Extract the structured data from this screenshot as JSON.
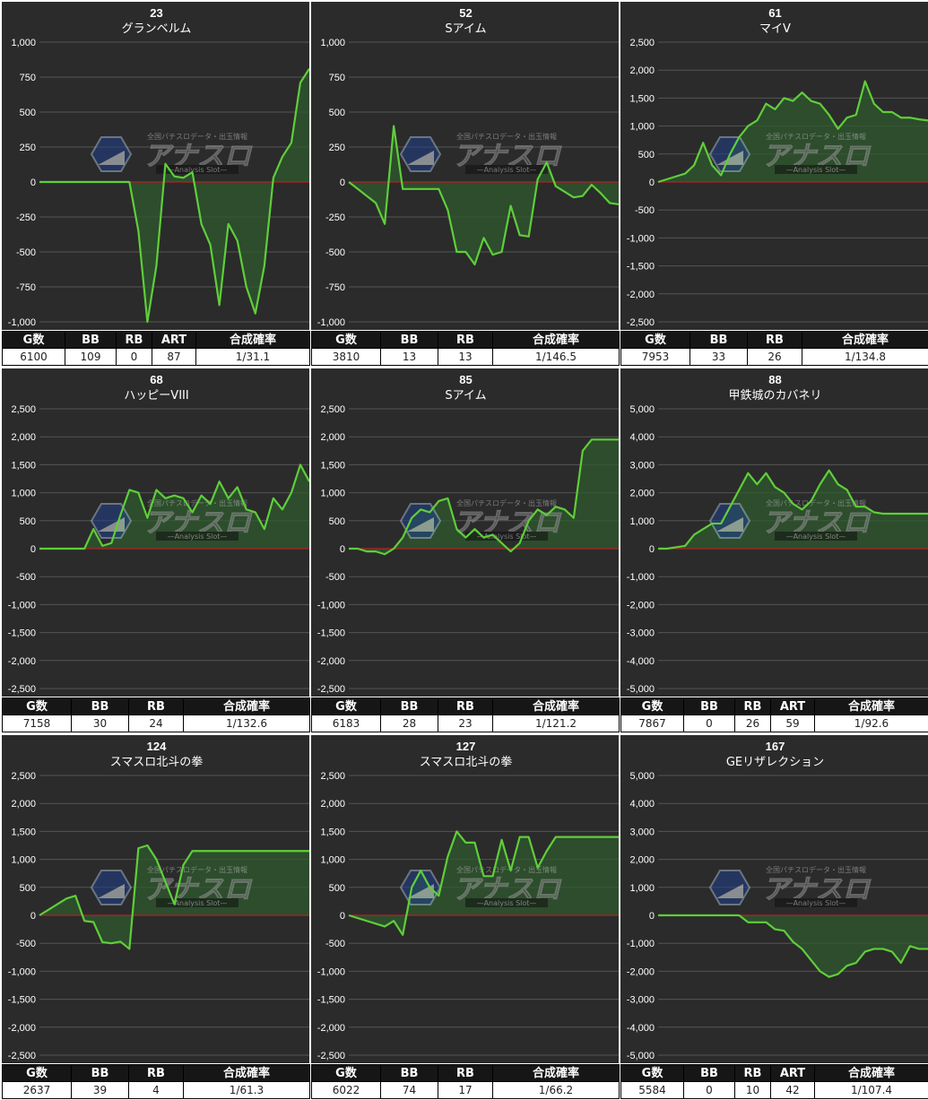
{
  "watermark": {
    "logo_text": "アナスロ",
    "sub_text": "—Analysis Slot—",
    "top_text": "全国パチスロデータ・出玉情報"
  },
  "colors": {
    "panel_bg": "#2b2b2b",
    "line": "#5fce3a",
    "fill": "#2f5a2f",
    "zero_line": "#b22222",
    "grid": "#555555",
    "text": "#ffffff"
  },
  "chart_data": [
    {
      "type": "area",
      "number": "23",
      "name": "グランベルム",
      "ylim": [
        -1000,
        1000
      ],
      "yticks": [
        1000,
        750,
        500,
        250,
        0,
        -250,
        -500,
        -750,
        -1000
      ],
      "x": [
        0,
        1,
        2,
        3,
        4,
        5,
        6,
        7,
        8,
        9,
        10,
        11,
        12,
        13,
        14,
        15,
        16,
        17,
        18,
        19,
        20,
        21,
        22,
        23,
        24,
        25,
        26,
        27,
        28,
        29,
        30
      ],
      "values": [
        0,
        0,
        0,
        0,
        0,
        0,
        0,
        0,
        0,
        0,
        0,
        -350,
        -1000,
        -600,
        130,
        40,
        30,
        70,
        -300,
        -450,
        -880,
        -300,
        -420,
        -750,
        -940,
        -600,
        30,
        180,
        280,
        710,
        810
      ],
      "headers": [
        "G数",
        "BB",
        "RB",
        "ART",
        "合成確率"
      ],
      "values_row": [
        "6100",
        "109",
        "0",
        "87",
        "1/31.1"
      ]
    },
    {
      "type": "area",
      "number": "52",
      "name": "Sアイム",
      "ylim": [
        -1000,
        1000
      ],
      "yticks": [
        1000,
        750,
        500,
        250,
        0,
        -250,
        -500,
        -750,
        -1000
      ],
      "x": [
        0,
        1,
        2,
        3,
        4,
        5,
        6,
        7,
        8,
        9,
        10,
        11,
        12,
        13,
        14,
        15,
        16,
        17,
        18,
        19,
        20,
        21,
        22,
        23,
        24,
        25,
        26,
        27,
        28,
        29,
        30
      ],
      "values": [
        0,
        -50,
        -100,
        -150,
        -300,
        400,
        -50,
        -50,
        -50,
        -50,
        -50,
        -200,
        -500,
        -500,
        -590,
        -400,
        -520,
        -500,
        -170,
        -380,
        -390,
        20,
        140,
        -30,
        -70,
        -110,
        -100,
        -20,
        -80,
        -150,
        -160
      ],
      "headers": [
        "G数",
        "BB",
        "RB",
        "合成確率"
      ],
      "values_row": [
        "3810",
        "13",
        "13",
        "1/146.5"
      ]
    },
    {
      "type": "area",
      "number": "61",
      "name": "マイV",
      "ylim": [
        -2500,
        2500
      ],
      "yticks": [
        2500,
        2000,
        1500,
        1000,
        500,
        0,
        -500,
        -1000,
        -1500,
        -2000,
        -2500
      ],
      "x": [
        0,
        1,
        2,
        3,
        4,
        5,
        6,
        7,
        8,
        9,
        10,
        11,
        12,
        13,
        14,
        15,
        16,
        17,
        18,
        19,
        20,
        21,
        22,
        23,
        24,
        25,
        26,
        27,
        28,
        29,
        30
      ],
      "values": [
        0,
        50,
        100,
        150,
        300,
        700,
        300,
        120,
        500,
        800,
        1000,
        1100,
        1400,
        1300,
        1500,
        1450,
        1600,
        1450,
        1400,
        1200,
        950,
        1150,
        1200,
        1800,
        1400,
        1250,
        1250,
        1150,
        1150,
        1120,
        1100
      ],
      "headers": [
        "G数",
        "BB",
        "RB",
        "合成確率"
      ],
      "values_row": [
        "7953",
        "33",
        "26",
        "1/134.8"
      ]
    },
    {
      "type": "area",
      "number": "68",
      "name": "ハッピーVIII",
      "ylim": [
        -2500,
        2500
      ],
      "yticks": [
        2500,
        2000,
        1500,
        1000,
        500,
        0,
        -500,
        -1000,
        -1500,
        -2000,
        -2500
      ],
      "x": [
        0,
        1,
        2,
        3,
        4,
        5,
        6,
        7,
        8,
        9,
        10,
        11,
        12,
        13,
        14,
        15,
        16,
        17,
        18,
        19,
        20,
        21,
        22,
        23,
        24,
        25,
        26,
        27,
        28,
        29,
        30
      ],
      "values": [
        0,
        0,
        0,
        0,
        0,
        0,
        350,
        50,
        100,
        600,
        1050,
        1000,
        550,
        1050,
        900,
        950,
        900,
        650,
        950,
        800,
        1200,
        900,
        1100,
        700,
        650,
        350,
        900,
        700,
        1000,
        1500,
        1200
      ],
      "headers": [
        "G数",
        "BB",
        "RB",
        "合成確率"
      ],
      "values_row": [
        "7158",
        "30",
        "24",
        "1/132.6"
      ]
    },
    {
      "type": "area",
      "number": "85",
      "name": "Sアイム",
      "ylim": [
        -2500,
        2500
      ],
      "yticks": [
        2500,
        2000,
        1500,
        1000,
        500,
        0,
        -500,
        -1000,
        -1500,
        -2000,
        -2500
      ],
      "x": [
        0,
        1,
        2,
        3,
        4,
        5,
        6,
        7,
        8,
        9,
        10,
        11,
        12,
        13,
        14,
        15,
        16,
        17,
        18,
        19,
        20,
        21,
        22,
        23,
        24,
        25,
        26,
        27,
        28,
        29,
        30
      ],
      "values": [
        0,
        0,
        -50,
        -50,
        -100,
        0,
        200,
        550,
        700,
        650,
        850,
        900,
        350,
        200,
        350,
        200,
        250,
        100,
        -50,
        100,
        500,
        700,
        600,
        750,
        700,
        550,
        1750,
        1950,
        1950,
        1950,
        1950
      ],
      "headers": [
        "G数",
        "BB",
        "RB",
        "合成確率"
      ],
      "values_row": [
        "6183",
        "28",
        "23",
        "1/121.2"
      ]
    },
    {
      "type": "area",
      "number": "88",
      "name": "甲鉄城のカバネリ",
      "ylim": [
        -5000,
        5000
      ],
      "yticks": [
        5000,
        4000,
        3000,
        2000,
        1000,
        0,
        -1000,
        -2000,
        -3000,
        -4000,
        -5000
      ],
      "x": [
        0,
        1,
        2,
        3,
        4,
        5,
        6,
        7,
        8,
        9,
        10,
        11,
        12,
        13,
        14,
        15,
        16,
        17,
        18,
        19,
        20,
        21,
        22,
        23,
        24,
        25,
        26,
        27,
        28,
        29,
        30
      ],
      "values": [
        0,
        0,
        50,
        100,
        500,
        700,
        900,
        900,
        1500,
        2100,
        2700,
        2300,
        2700,
        2200,
        2000,
        1600,
        1400,
        1700,
        2300,
        2800,
        2300,
        2100,
        1500,
        1500,
        1300,
        1250,
        1250,
        1250,
        1250,
        1250,
        1250
      ],
      "headers": [
        "G数",
        "BB",
        "RB",
        "ART",
        "合成確率"
      ],
      "values_row": [
        "7867",
        "0",
        "26",
        "59",
        "1/92.6"
      ]
    },
    {
      "type": "area",
      "number": "124",
      "name": "スマスロ北斗の拳",
      "ylim": [
        -2500,
        2500
      ],
      "yticks": [
        2500,
        2000,
        1500,
        1000,
        500,
        0,
        -500,
        -1000,
        -1500,
        -2000,
        -2500
      ],
      "x": [
        0,
        1,
        2,
        3,
        4,
        5,
        6,
        7,
        8,
        9,
        10,
        11,
        12,
        13,
        14,
        15,
        16,
        17,
        18,
        19,
        20,
        21,
        22,
        23,
        24,
        25,
        26,
        27,
        28,
        29,
        30
      ],
      "values": [
        0,
        100,
        200,
        300,
        350,
        -100,
        -120,
        -480,
        -500,
        -470,
        -600,
        1200,
        1250,
        1000,
        600,
        200,
        900,
        1150,
        1150,
        1150,
        1150,
        1150,
        1150,
        1150,
        1150,
        1150,
        1150,
        1150,
        1150,
        1150,
        1150
      ],
      "headers": [
        "G数",
        "BB",
        "RB",
        "合成確率"
      ],
      "values_row": [
        "2637",
        "39",
        "4",
        "1/61.3"
      ]
    },
    {
      "type": "area",
      "number": "127",
      "name": "スマスロ北斗の拳",
      "ylim": [
        -2500,
        2500
      ],
      "yticks": [
        2500,
        2000,
        1500,
        1000,
        500,
        0,
        -500,
        -1000,
        -1500,
        -2000,
        -2500
      ],
      "x": [
        0,
        1,
        2,
        3,
        4,
        5,
        6,
        7,
        8,
        9,
        10,
        11,
        12,
        13,
        14,
        15,
        16,
        17,
        18,
        19,
        20,
        21,
        22,
        23,
        24,
        25,
        26,
        27,
        28,
        29,
        30
      ],
      "values": [
        0,
        -50,
        -100,
        -150,
        -200,
        -100,
        -350,
        500,
        800,
        500,
        350,
        1050,
        1500,
        1300,
        1300,
        700,
        700,
        1350,
        800,
        1400,
        1400,
        850,
        1150,
        1400,
        1400,
        1400,
        1400,
        1400,
        1400,
        1400,
        1400
      ],
      "headers": [
        "G数",
        "BB",
        "RB",
        "合成確率"
      ],
      "values_row": [
        "6022",
        "74",
        "17",
        "1/66.2"
      ]
    },
    {
      "type": "area",
      "number": "167",
      "name": "GEリザレクション",
      "ylim": [
        -5000,
        5000
      ],
      "yticks": [
        5000,
        4000,
        3000,
        2000,
        1000,
        0,
        -1000,
        -2000,
        -3000,
        -4000,
        -5000
      ],
      "x": [
        0,
        1,
        2,
        3,
        4,
        5,
        6,
        7,
        8,
        9,
        10,
        11,
        12,
        13,
        14,
        15,
        16,
        17,
        18,
        19,
        20,
        21,
        22,
        23,
        24,
        25,
        26,
        27,
        28,
        29,
        30
      ],
      "values": [
        0,
        0,
        0,
        0,
        0,
        0,
        0,
        0,
        0,
        0,
        -250,
        -250,
        -250,
        -500,
        -550,
        -950,
        -1200,
        -1600,
        -2000,
        -2200,
        -2100,
        -1800,
        -1700,
        -1300,
        -1200,
        -1200,
        -1300,
        -1700,
        -1100,
        -1200,
        -1200
      ],
      "headers": [
        "G数",
        "BB",
        "RB",
        "ART",
        "合成確率"
      ],
      "values_row": [
        "5584",
        "0",
        "10",
        "42",
        "1/107.4"
      ]
    }
  ]
}
